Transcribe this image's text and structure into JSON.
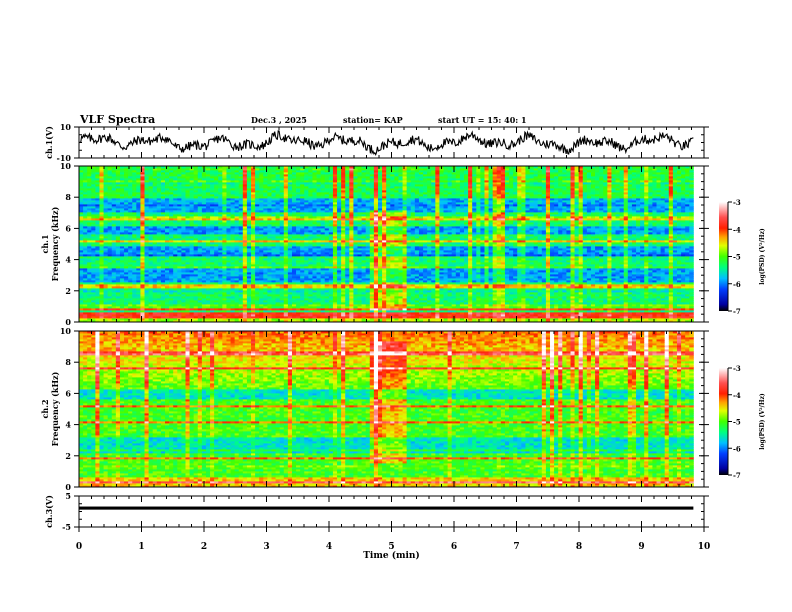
{
  "header": {
    "title": "VLF Spectra",
    "date": "Dec.3  , 2025",
    "station": "station= KAP",
    "start": "start  UT  =   15: 40: 1"
  },
  "chart_data": [
    {
      "type": "line",
      "name": "ch1-waveform",
      "ylabel": "ch.1(V)",
      "ylim": [
        -10,
        10
      ],
      "yticks": [
        "10",
        "-10"
      ],
      "xlim": [
        0,
        10
      ],
      "series": [
        {
          "name": "ch.1",
          "x_range": [
            0,
            9.83
          ],
          "amplitude_range": [
            -8,
            9
          ]
        }
      ]
    },
    {
      "type": "heatmap",
      "name": "ch1-spectrogram",
      "ylabel": "ch.1",
      "ylabel2": "Frequency  (kHz)",
      "ylim": [
        0,
        10
      ],
      "yticks": [
        "0",
        "2",
        "4",
        "6",
        "8",
        "10"
      ],
      "xlim": [
        0,
        10
      ],
      "data_x_range": [
        0,
        9.83
      ],
      "colorbar": {
        "label": "log(PSD) (V²/Hz)",
        "range": [
          -7,
          -3
        ],
        "ticks": [
          "-3",
          "-4",
          "-5",
          "-6",
          "-7"
        ]
      },
      "bands_low_psd_khz": [
        [
          5.6,
          6.2
        ],
        [
          4.2,
          4.9
        ],
        [
          2.6,
          3.4
        ],
        [
          7.0,
          8.0
        ]
      ],
      "bands_high_psd_khz": [
        0.3,
        0.5,
        0.8,
        2.3,
        5.2,
        6.6
      ],
      "burst": {
        "t_min": [
          4.67,
          5.27
        ],
        "f_khz": [
          0.8,
          7.2
        ]
      }
    },
    {
      "type": "heatmap",
      "name": "ch2-spectrogram",
      "ylabel": "ch.2",
      "ylabel2": "Frequency  (kHz)",
      "ylim": [
        0,
        10
      ],
      "yticks": [
        "0",
        "2",
        "4",
        "6",
        "8",
        "10"
      ],
      "xlim": [
        0,
        10
      ],
      "data_x_range": [
        0,
        9.83
      ],
      "colorbar": {
        "label": "log(PSD) (V²/Hz)",
        "range": [
          -7,
          -3
        ],
        "ticks": [
          "-3",
          "-4",
          "-5",
          "-6",
          "-7"
        ]
      },
      "bands_low_psd_khz": [
        [
          2.2,
          3.2
        ],
        [
          5.6,
          6.3
        ]
      ],
      "bands_high_psd_khz": [
        0.3,
        1.9,
        4.2,
        5.2,
        7.6,
        8.6
      ],
      "burst": {
        "t_min": [
          4.67,
          5.27
        ],
        "f_khz": [
          1.5,
          9.3
        ]
      }
    },
    {
      "type": "line",
      "name": "ch3-waveform",
      "ylabel": "ch.3(V)",
      "ylim": [
        -5,
        5
      ],
      "yticks": [
        "5",
        "-5"
      ],
      "xlim": [
        0,
        10
      ],
      "series": [
        {
          "name": "ch.3",
          "x_range": [
            0,
            9.83
          ],
          "band": [
            0.6,
            1.6
          ]
        }
      ]
    }
  ],
  "xaxis": {
    "label": "Time  (min)",
    "ticks": [
      "0",
      "1",
      "2",
      "3",
      "4",
      "5",
      "6",
      "7",
      "8",
      "9",
      "10"
    ],
    "range": [
      0,
      10
    ]
  }
}
